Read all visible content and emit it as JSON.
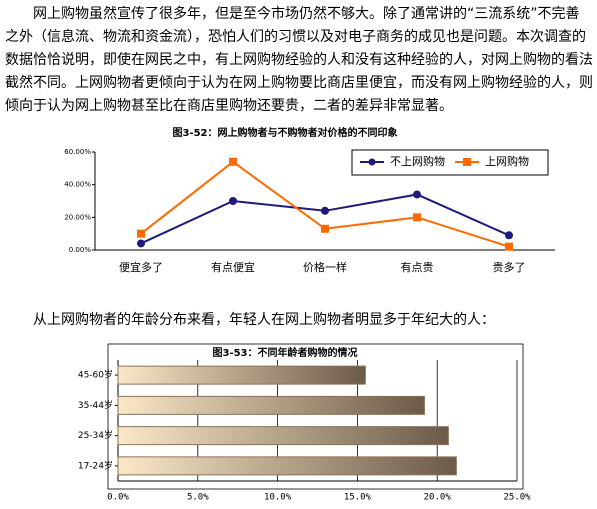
{
  "paragraphs": [
    "网上购物虽然宣传了很多年，但是至今市场仍然不够大。除了通常讲的“三流系统”不完善之外（信息流、物流和资金流），恐怕人们的习惯以及对电子商务的成见也是问题。本次调查的数据恰恰说明，即使在网民之中，有上网购物经验的人和没有这种经验的人，对网上购物的看法截然不同。上网购物者更倾向于认为在网上购物要比商店里便宜，而没有网上购物经验的人，则倾向于认为网上购物甚至比在商店里购物还要贵，二者的差异非常显著。",
    "从上网购物者的年龄分布来看，年轻人在网上购物者明显多于年纪大的人："
  ],
  "chart_data": [
    {
      "type": "line",
      "title": "图3-52：网上购物者与不购物者对价格的不同印象",
      "categories": [
        "便宜多了",
        "有点便宜",
        "价格一样",
        "有点贵",
        "贵多了"
      ],
      "series": [
        {
          "name": "不上网购物",
          "color": "#1f1a7a",
          "values": [
            4,
            30,
            24,
            34,
            9
          ]
        },
        {
          "name": "上网购物",
          "color": "#ff6a00",
          "values": [
            10,
            54,
            13,
            20,
            2
          ]
        }
      ],
      "ylim": [
        0,
        60
      ],
      "yticks": [
        {
          "value": 0,
          "label": "0.00%"
        },
        {
          "value": 20,
          "label": "20.00%"
        },
        {
          "value": 40,
          "label": "40.00%"
        },
        {
          "value": 60,
          "label": "60.00%"
        }
      ],
      "legend": "top-right"
    },
    {
      "type": "hbar",
      "title": "图3-53：不同年龄者购物的情况",
      "categories": [
        "45-60岁",
        "35-44岁",
        "25-34岁",
        "17-24岁"
      ],
      "values": [
        15.5,
        19.2,
        20.7,
        21.2
      ],
      "color": "#8b7355",
      "xlim": [
        0,
        25
      ],
      "xticks": [
        {
          "value": 0,
          "label": "0.0%"
        },
        {
          "value": 5,
          "label": "5.0%"
        },
        {
          "value": 10,
          "label": "10.0%"
        },
        {
          "value": 15,
          "label": "15.0%"
        },
        {
          "value": 20,
          "label": "20.0%"
        },
        {
          "value": 25,
          "label": "25.0%"
        }
      ],
      "grid": true
    }
  ]
}
